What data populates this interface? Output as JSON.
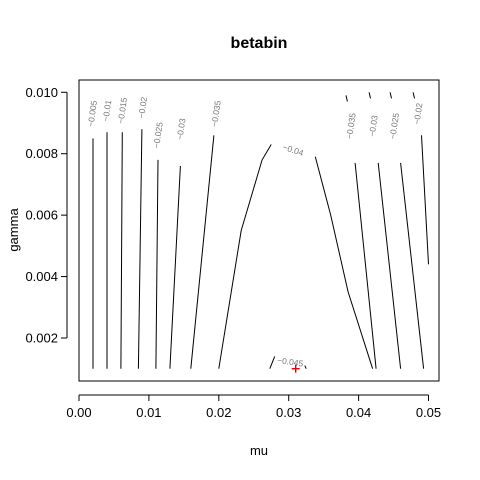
{
  "chart_data": {
    "type": "contour",
    "title": "betabin",
    "xlabel": "mu",
    "ylabel": "gamma",
    "xlim": [
      0.0,
      0.0515
    ],
    "ylim": [
      0.0006,
      0.0104
    ],
    "x_ticks": [
      {
        "value": 0.0,
        "label": "0.00"
      },
      {
        "value": 0.01,
        "label": "0.01"
      },
      {
        "value": 0.02,
        "label": "0.02"
      },
      {
        "value": 0.03,
        "label": "0.03"
      },
      {
        "value": 0.04,
        "label": "0.04"
      },
      {
        "value": 0.05,
        "label": "0.05"
      }
    ],
    "y_ticks": [
      {
        "value": 0.002,
        "label": "0.002"
      },
      {
        "value": 0.004,
        "label": "0.004"
      },
      {
        "value": 0.006,
        "label": "0.006"
      },
      {
        "value": 0.008,
        "label": "0.008"
      },
      {
        "value": 0.01,
        "label": "0.010"
      }
    ],
    "contours": [
      {
        "label": "-0.005",
        "points": [
          [
            0.002,
            0.001
          ],
          [
            0.002,
            0.0085
          ]
        ],
        "label_at": [
          0.002,
          0.0093
        ]
      },
      {
        "label": "-0.01",
        "points": [
          [
            0.004,
            0.001
          ],
          [
            0.004,
            0.0087
          ]
        ],
        "label_at": [
          0.0041,
          0.0094
        ]
      },
      {
        "label": "-0.015",
        "points": [
          [
            0.006,
            0.001
          ],
          [
            0.0062,
            0.0087
          ]
        ],
        "label_at": [
          0.0063,
          0.0094
        ]
      },
      {
        "label": "-0.02",
        "points": [
          [
            0.0085,
            0.001
          ],
          [
            0.009,
            0.0088
          ]
        ],
        "label_at": [
          0.0092,
          0.0095
        ]
      },
      {
        "label": "-0.025",
        "points": [
          [
            0.011,
            0.001
          ],
          [
            0.0113,
            0.0078
          ]
        ],
        "label_at": [
          0.0114,
          0.0086
        ]
      },
      {
        "label": "-0.03",
        "points": [
          [
            0.013,
            0.001
          ],
          [
            0.0145,
            0.0076
          ]
        ],
        "label_at": [
          0.0147,
          0.0088
        ]
      },
      {
        "label": "-0.035",
        "points": [
          [
            0.016,
            0.001
          ],
          [
            0.0193,
            0.0086
          ]
        ],
        "label_at": [
          0.0197,
          0.0093
        ]
      },
      {
        "label": "-0.04",
        "points": [
          [
            0.02,
            0.001
          ],
          [
            0.0232,
            0.0055
          ],
          [
            0.0262,
            0.0078
          ],
          [
            0.0275,
            0.0083
          ]
        ],
        "points_b": [
          [
            0.0338,
            0.0079
          ],
          [
            0.036,
            0.006
          ],
          [
            0.0385,
            0.0035
          ],
          [
            0.042,
            0.001
          ]
        ],
        "label_at": [
          0.0306,
          0.0081
        ]
      },
      {
        "label": "-0.045",
        "points": [
          [
            0.0273,
            0.001
          ],
          [
            0.028,
            0.0014
          ]
        ],
        "points_b": [
          [
            0.0325,
            0.001
          ],
          [
            0.0323,
            0.0011
          ]
        ],
        "label_at": [
          0.0302,
          0.0012
        ]
      },
      {
        "label": "-0.035",
        "points": [
          [
            0.0395,
            0.0077
          ],
          [
            0.0425,
            0.001
          ]
        ],
        "points_b": [
          [
            0.0382,
            0.0099
          ],
          [
            0.0384,
            0.0097
          ]
        ],
        "label_at": [
          0.039,
          0.0089
        ]
      },
      {
        "label": "-0.03",
        "points": [
          [
            0.0428,
            0.0077
          ],
          [
            0.046,
            0.001
          ]
        ],
        "points_b": [
          [
            0.0415,
            0.01
          ],
          [
            0.0417,
            0.0098
          ]
        ],
        "label_at": [
          0.0422,
          0.0089
        ]
      },
      {
        "label": "-0.025",
        "points": [
          [
            0.046,
            0.0077
          ],
          [
            0.0493,
            0.001
          ]
        ],
        "points_b": [
          [
            0.0445,
            0.01
          ],
          [
            0.0447,
            0.0098
          ]
        ],
        "label_at": [
          0.0452,
          0.0089
        ]
      },
      {
        "label": "-0.02",
        "points": [
          [
            0.049,
            0.0086
          ],
          [
            0.05,
            0.0044
          ]
        ],
        "points_b": [
          [
            0.0478,
            0.01
          ],
          [
            0.048,
            0.0098
          ]
        ],
        "label_at": [
          0.0486,
          0.0093
        ]
      }
    ],
    "marker": {
      "x": 0.031,
      "y": 0.001,
      "color": "#e8000b",
      "shape": "plus"
    },
    "grid": false,
    "legend": "none"
  }
}
